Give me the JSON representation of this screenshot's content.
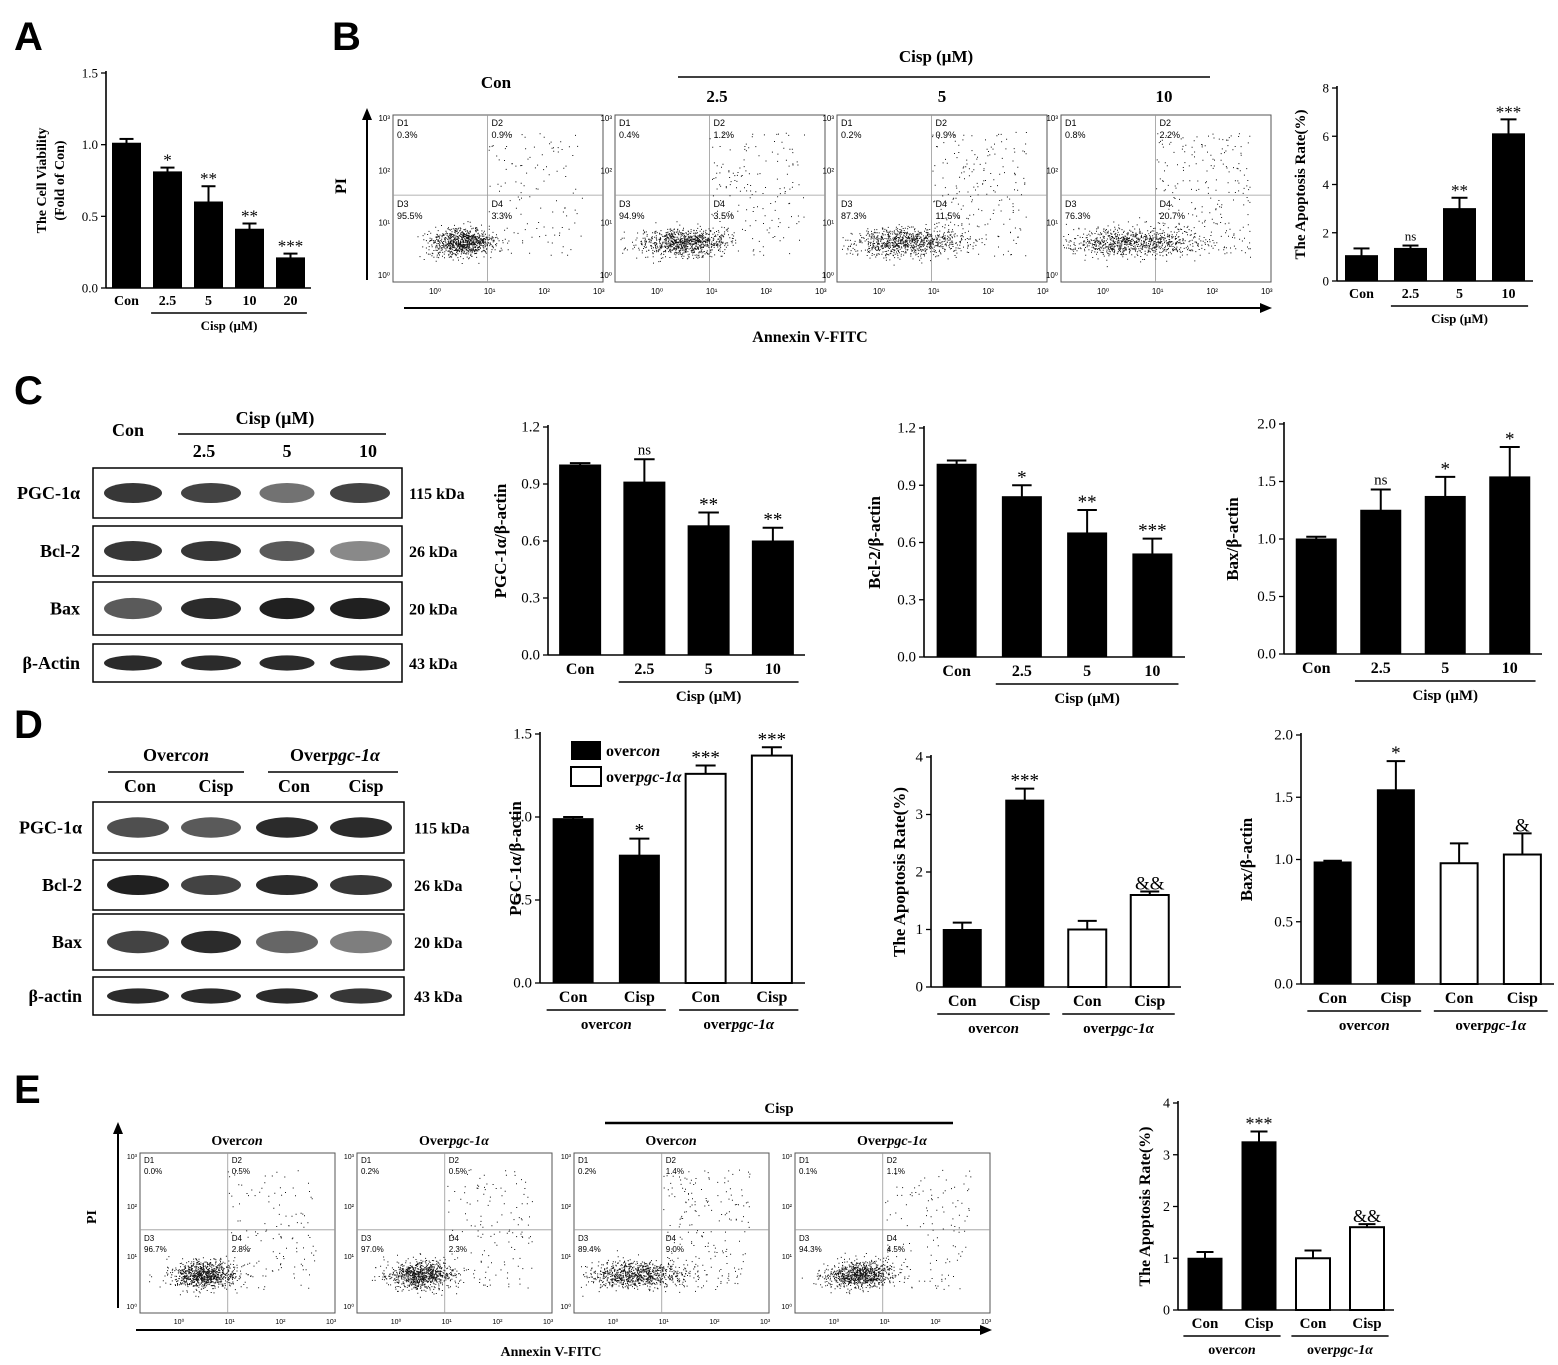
{
  "panels": {
    "A": "A",
    "B": "B",
    "C": "C",
    "D": "D",
    "E": "E"
  },
  "units": {
    "cisp": "Cisp (μM)",
    "annexin": "Annexin V-FITC",
    "pi": "PI"
  },
  "flow_B": {
    "con_label": "Con",
    "group_label": "Cisp (μM)",
    "plots": [
      {
        "title": "Con",
        "q1": "0.3%",
        "q2": "0.9%",
        "q3": "95.5%",
        "q4": "3.3%"
      },
      {
        "title": "2.5",
        "q1": "0.4%",
        "q2": "1.2%",
        "q3": "94.9%",
        "q4": "3.5%"
      },
      {
        "title": "5",
        "q1": "0.2%",
        "q2": "0.9%",
        "q3": "87.3%",
        "q4": "11.5%"
      },
      {
        "title": "10",
        "q1": "0.8%",
        "q2": "2.2%",
        "q3": "76.3%",
        "q4": "20.7%"
      }
    ],
    "quadrant_names": [
      "D1",
      "D2",
      "D3",
      "D4"
    ],
    "y_ticks": [
      "10³",
      "10²",
      "10¹",
      "10⁰"
    ],
    "x_ticks": [
      "10⁰",
      "10¹",
      "10²",
      "10³"
    ]
  },
  "flow_E": {
    "group_label": "Cisp",
    "plots": [
      {
        "title_a": "Over",
        "title_b": "con",
        "q1": "0.0%",
        "q2": "0.5%",
        "q3": "96.7%",
        "q4": "2.8%"
      },
      {
        "title_a": "Over",
        "title_b": "pgc-1α",
        "q1": "0.2%",
        "q2": "0.5%",
        "q3": "97.0%",
        "q4": "2.3%"
      },
      {
        "title_a": "Over",
        "title_b": "con",
        "q1": "0.2%",
        "q2": "1.4%",
        "q3": "89.4%",
        "q4": "9.0%"
      },
      {
        "title_a": "Over",
        "title_b": "pgc-1α",
        "q1": "0.1%",
        "q2": "1.1%",
        "q3": "94.3%",
        "q4": "4.5%"
      }
    ]
  },
  "blot_C": {
    "con": "Con",
    "group": "Cisp (μM)",
    "lanes": [
      "2.5",
      "5",
      "10"
    ],
    "rows": [
      {
        "name": "PGC-1α",
        "kda": "115 kDa"
      },
      {
        "name": "Bcl-2",
        "kda": "26 kDa"
      },
      {
        "name": "Bax",
        "kda": "20 kDa"
      },
      {
        "name": "β-Actin",
        "kda": "43 kDa"
      }
    ]
  },
  "blot_D": {
    "group1_a": "Over",
    "group1_b": "con",
    "group2_a": "Over",
    "group2_b": "pgc-1α",
    "lanes": [
      "Con",
      "Cisp",
      "Con",
      "Cisp"
    ],
    "rows": [
      {
        "name": "PGC-1α",
        "kda": "115 kDa"
      },
      {
        "name": "Bcl-2",
        "kda": "26 kDa"
      },
      {
        "name": "Bax",
        "kda": "20 kDa"
      },
      {
        "name": "β-actin",
        "kda": "43 kDa"
      }
    ]
  },
  "legend_D": {
    "filled_a": "over",
    "filled_b": "con",
    "open_a": "over",
    "open_b": "pgc-1α"
  },
  "group_labels": {
    "overcon_a": "over",
    "overcon_b": "con",
    "overpgc_a": "over",
    "overpgc_b": "pgc-1α"
  },
  "chart_data": [
    {
      "id": "A",
      "type": "bar",
      "categories": [
        "Con",
        "2.5",
        "5",
        "10",
        "20"
      ],
      "values": [
        1.01,
        0.81,
        0.6,
        0.41,
        0.21
      ],
      "errors": [
        0.03,
        0.03,
        0.11,
        0.04,
        0.03
      ],
      "fills": [
        "filled",
        "filled",
        "filled",
        "filled",
        "filled"
      ],
      "sig": [
        "",
        "*",
        "**",
        "**",
        "***"
      ],
      "ylabel": "The Cell Viability",
      "ylabel2": "(Fold of Con)",
      "ylim": [
        0,
        1.5
      ],
      "yticks": [
        "0.0",
        "0.5",
        "1.0",
        "1.5"
      ],
      "xgroup": "Cisp (μM)"
    },
    {
      "id": "B",
      "type": "bar",
      "categories": [
        "Con",
        "2.5",
        "5",
        "10"
      ],
      "values": [
        1.05,
        1.35,
        3.0,
        6.1
      ],
      "errors": [
        0.3,
        0.12,
        0.45,
        0.6
      ],
      "fills": [
        "filled",
        "filled",
        "filled",
        "filled"
      ],
      "sig": [
        "",
        "ns",
        "**",
        "***"
      ],
      "ylabel": "The Apoptosis Rate(%)",
      "ylim": [
        0,
        8
      ],
      "yticks": [
        "0",
        "2",
        "4",
        "6",
        "8"
      ],
      "xgroup": "Cisp (μM)"
    },
    {
      "id": "C1",
      "type": "bar",
      "categories": [
        "Con",
        "2.5",
        "5",
        "10"
      ],
      "values": [
        1.0,
        0.91,
        0.68,
        0.6
      ],
      "errors": [
        0.01,
        0.12,
        0.07,
        0.07
      ],
      "fills": [
        "filled",
        "filled",
        "filled",
        "filled"
      ],
      "sig": [
        "",
        "ns",
        "**",
        "**"
      ],
      "ylabel": "PGC-1α/β-actin",
      "ylim": [
        0,
        1.2
      ],
      "yticks": [
        "0.0",
        "0.3",
        "0.6",
        "0.9",
        "1.2"
      ],
      "xgroup": "Cisp (μM)"
    },
    {
      "id": "C2",
      "type": "bar",
      "categories": [
        "Con",
        "2.5",
        "5",
        "10"
      ],
      "values": [
        1.01,
        0.84,
        0.65,
        0.54
      ],
      "errors": [
        0.02,
        0.06,
        0.12,
        0.08
      ],
      "fills": [
        "filled",
        "filled",
        "filled",
        "filled"
      ],
      "sig": [
        "",
        "*",
        "**",
        "***"
      ],
      "ylabel": "Bcl-2/β-actin",
      "ylim": [
        0,
        1.2
      ],
      "yticks": [
        "0.0",
        "0.3",
        "0.6",
        "0.9",
        "1.2"
      ],
      "xgroup": "Cisp (μM)"
    },
    {
      "id": "C3",
      "type": "bar",
      "categories": [
        "Con",
        "2.5",
        "5",
        "10"
      ],
      "values": [
        1.0,
        1.25,
        1.37,
        1.54
      ],
      "errors": [
        0.02,
        0.18,
        0.17,
        0.26
      ],
      "fills": [
        "filled",
        "filled",
        "filled",
        "filled"
      ],
      "sig": [
        "",
        "ns",
        "*",
        "*"
      ],
      "ylabel": "Bax/β-actin",
      "ylim": [
        0,
        2.0
      ],
      "yticks": [
        "0.0",
        "0.5",
        "1.0",
        "1.5",
        "2.0"
      ],
      "xgroup": "Cisp (μM)"
    },
    {
      "id": "D1",
      "type": "bar",
      "categories": [
        "Con",
        "Cisp",
        "Con",
        "Cisp"
      ],
      "values": [
        0.99,
        0.77,
        1.26,
        1.37
      ],
      "errors": [
        0.01,
        0.1,
        0.05,
        0.05
      ],
      "fills": [
        "filled",
        "filled",
        "open",
        "open"
      ],
      "sig": [
        "",
        "*",
        "***",
        "***"
      ],
      "ylabel": "PGC-1α/β-actin",
      "ylim": [
        0,
        1.5
      ],
      "yticks": [
        "0.0",
        "0.5",
        "1.0",
        "1.5"
      ],
      "groups": true
    },
    {
      "id": "D2",
      "type": "bar",
      "categories": [
        "Con",
        "Cisp",
        "Con",
        "Cisp"
      ],
      "values": [
        1.0,
        3.25,
        1.0,
        1.6
      ],
      "errors": [
        0.12,
        0.2,
        0.15,
        0.06
      ],
      "fills": [
        "filled",
        "filled",
        "open",
        "open"
      ],
      "sig": [
        "",
        "***",
        "",
        "&&"
      ],
      "ylabel": "The Apoptosis Rate(%)",
      "ylim": [
        0,
        4
      ],
      "yticks": [
        "0",
        "1",
        "2",
        "3",
        "4"
      ],
      "groups": true
    },
    {
      "id": "D3",
      "type": "bar",
      "categories": [
        "Con",
        "Cisp",
        "Con",
        "Cisp"
      ],
      "values": [
        0.98,
        1.56,
        0.97,
        1.04
      ],
      "errors": [
        0.01,
        0.23,
        0.16,
        0.17
      ],
      "fills": [
        "filled",
        "filled",
        "open",
        "open"
      ],
      "sig": [
        "",
        "*",
        "",
        "&"
      ],
      "ylabel": "Bax/β-actin",
      "ylim": [
        0,
        2.0
      ],
      "yticks": [
        "0.0",
        "0.5",
        "1.0",
        "1.5",
        "2.0"
      ],
      "groups": true
    },
    {
      "id": "E",
      "type": "bar",
      "categories": [
        "Con",
        "Cisp",
        "Con",
        "Cisp"
      ],
      "values": [
        1.0,
        3.25,
        1.0,
        1.6
      ],
      "errors": [
        0.12,
        0.2,
        0.15,
        0.06
      ],
      "fills": [
        "filled",
        "filled",
        "open",
        "open"
      ],
      "sig": [
        "",
        "***",
        "",
        "&&"
      ],
      "ylabel": "The Apoptosis Rate(%)",
      "ylim": [
        0,
        4
      ],
      "yticks": [
        "0",
        "1",
        "2",
        "3",
        "4"
      ],
      "groups": true
    }
  ]
}
